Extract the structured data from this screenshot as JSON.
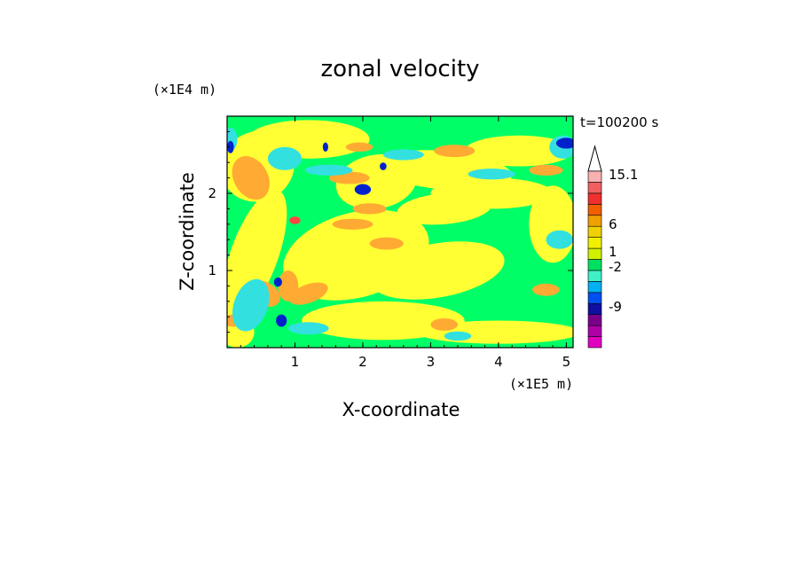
{
  "chart_data": {
    "type": "heatmap",
    "title": "zonal velocity",
    "xlabel": "X-coordinate",
    "ylabel": "Z-coordinate",
    "x_unit": "(×1E5 m)",
    "y_unit": "(×1E4 m)",
    "time_label": "t=100200 s",
    "xlim": [
      0,
      5.1
    ],
    "ylim": [
      0,
      3.0
    ],
    "x_ticks": [
      "1",
      "2",
      "3",
      "4",
      "5"
    ],
    "y_ticks": [
      "1",
      "2"
    ],
    "colorbar": {
      "levels": [
        "15.1",
        "6",
        "1",
        "-2",
        "-9"
      ],
      "colors": [
        "#e000c0",
        "#b000a8",
        "#7a008c",
        "#1010a0",
        "#0050f0",
        "#00b0f0",
        "#40f0c8",
        "#00e060",
        "#d0f000",
        "#f0f000",
        "#f0d000",
        "#f0a000",
        "#f06000",
        "#f03030",
        "#f06060",
        "#f8b0b0"
      ]
    },
    "palette": {
      "background_green": "#00ff66",
      "yellow": "#ffff33",
      "orange": "#ffaa33",
      "cyan": "#33e0e0",
      "blue": "#0022cc",
      "red": "#ff4444"
    }
  }
}
